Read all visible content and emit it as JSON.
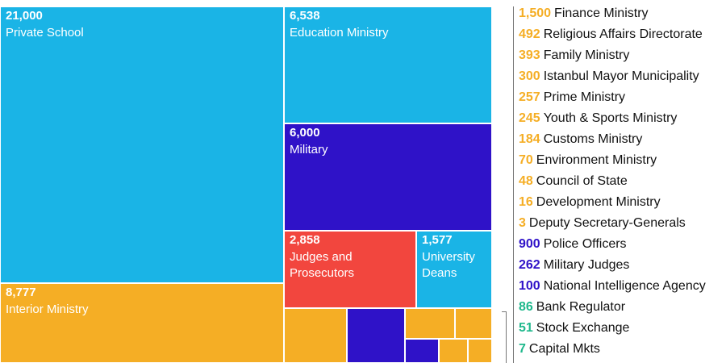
{
  "chart_data": {
    "type": "treemap",
    "colors": {
      "blue": "#1ab4e6",
      "orange": "#f5ae25",
      "purple": "#2f12c8",
      "red": "#f2463e",
      "green": "#1fb88c"
    },
    "tiles": [
      {
        "value": "21,000",
        "label": "Private School",
        "color": "#1ab4e6"
      },
      {
        "value": "6,538",
        "label": "Education Ministry",
        "color": "#1ab4e6"
      },
      {
        "value": "6,000",
        "label": "Military",
        "color": "#2f12c8"
      },
      {
        "value": "2,858",
        "label": "Judges and Prosecutors",
        "color": "#f2463e"
      },
      {
        "value": "1,577",
        "label": "University Deans",
        "color": "#1ab4e6"
      },
      {
        "value": "8,777",
        "label": "Interior Ministry",
        "color": "#f5ae25"
      }
    ],
    "small_tiles": [
      {
        "color": "#f5ae25"
      },
      {
        "color": "#2f12c8"
      },
      {
        "color": "#f5ae25"
      },
      {
        "color": "#f5ae25"
      },
      {
        "color": "#2f12c8"
      },
      {
        "color": "#f5ae25"
      },
      {
        "color": "#f5ae25"
      }
    ],
    "legend": [
      {
        "value": "1,500",
        "label": "Finance Ministry",
        "color": "#f5ae25"
      },
      {
        "value": "492",
        "label": "Religious Affairs Directorate",
        "color": "#f5ae25"
      },
      {
        "value": "393",
        "label": "Family Ministry",
        "color": "#f5ae25"
      },
      {
        "value": "300",
        "label": "Istanbul Mayor Municipality",
        "color": "#f5ae25"
      },
      {
        "value": "257",
        "label": "Prime Ministry",
        "color": "#f5ae25"
      },
      {
        "value": "245",
        "label": "Youth & Sports Ministry",
        "color": "#f5ae25"
      },
      {
        "value": "184",
        "label": "Customs Ministry",
        "color": "#f5ae25"
      },
      {
        "value": "70",
        "label": "Environment Ministry",
        "color": "#f5ae25"
      },
      {
        "value": "48",
        "label": "Council of State",
        "color": "#f5ae25"
      },
      {
        "value": "16",
        "label": "Development Ministry",
        "color": "#f5ae25"
      },
      {
        "value": "3",
        "label": "Deputy Secretary-Generals",
        "color": "#f5ae25"
      },
      {
        "value": "900",
        "label": "Police Officers",
        "color": "#2f12c8"
      },
      {
        "value": "262",
        "label": "Military Judges",
        "color": "#2f12c8"
      },
      {
        "value": "100",
        "label": "National Intelligence Agency",
        "color": "#2f12c8"
      },
      {
        "value": "86",
        "label": "Bank Regulator",
        "color": "#1fb88c"
      },
      {
        "value": "51",
        "label": "Stock Exchange",
        "color": "#1fb88c"
      },
      {
        "value": "7",
        "label": "Capital Mkts",
        "color": "#1fb88c"
      }
    ]
  }
}
